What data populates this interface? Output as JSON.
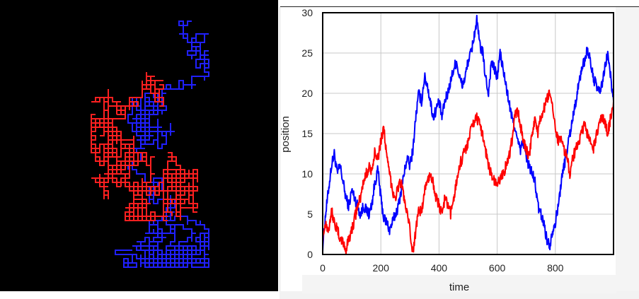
{
  "walk_panel": {
    "background": "#000000",
    "walkers": [
      {
        "color": "#2020ff"
      },
      {
        "color": "#ff2020"
      }
    ]
  },
  "chart_data": {
    "type": "line",
    "title": "",
    "xlabel": "time",
    "ylabel": "position",
    "xlim": [
      0,
      1000
    ],
    "ylim": [
      0,
      30
    ],
    "xticks": [
      0,
      200,
      400,
      600,
      800
    ],
    "yticks": [
      0,
      5,
      10,
      15,
      20,
      25,
      30
    ],
    "grid": true,
    "series": [
      {
        "color": "#0000ff",
        "points": [
          [
            0,
            1
          ],
          [
            10,
            5
          ],
          [
            20,
            8
          ],
          [
            30,
            11
          ],
          [
            40,
            12.5
          ],
          [
            50,
            10
          ],
          [
            60,
            11
          ],
          [
            70,
            9
          ],
          [
            80,
            7
          ],
          [
            90,
            6
          ],
          [
            100,
            8
          ],
          [
            110,
            7
          ],
          [
            120,
            6
          ],
          [
            130,
            5
          ],
          [
            140,
            6
          ],
          [
            150,
            5.5
          ],
          [
            160,
            5
          ],
          [
            170,
            6.5
          ],
          [
            180,
            9
          ],
          [
            190,
            10.5
          ],
          [
            200,
            7
          ],
          [
            210,
            4.5
          ],
          [
            220,
            4
          ],
          [
            230,
            3
          ],
          [
            240,
            4
          ],
          [
            250,
            5
          ],
          [
            260,
            6
          ],
          [
            270,
            8
          ],
          [
            280,
            10
          ],
          [
            290,
            12
          ],
          [
            300,
            11
          ],
          [
            310,
            13
          ],
          [
            320,
            17
          ],
          [
            330,
            20
          ],
          [
            340,
            19
          ],
          [
            350,
            22
          ],
          [
            360,
            21
          ],
          [
            370,
            19
          ],
          [
            380,
            17
          ],
          [
            390,
            18
          ],
          [
            400,
            19
          ],
          [
            410,
            17
          ],
          [
            420,
            19
          ],
          [
            430,
            20
          ],
          [
            440,
            21.5
          ],
          [
            450,
            23
          ],
          [
            460,
            24
          ],
          [
            470,
            22
          ],
          [
            480,
            21
          ],
          [
            490,
            22
          ],
          [
            500,
            24
          ],
          [
            510,
            25
          ],
          [
            520,
            27
          ],
          [
            530,
            29
          ],
          [
            540,
            26
          ],
          [
            550,
            25
          ],
          [
            560,
            22
          ],
          [
            570,
            20
          ],
          [
            580,
            24
          ],
          [
            590,
            23
          ],
          [
            600,
            22
          ],
          [
            610,
            25
          ],
          [
            620,
            23
          ],
          [
            630,
            21
          ],
          [
            640,
            19
          ],
          [
            650,
            17
          ],
          [
            660,
            16
          ],
          [
            670,
            14
          ],
          [
            680,
            13
          ],
          [
            690,
            14
          ],
          [
            700,
            12
          ],
          [
            710,
            11
          ],
          [
            720,
            10
          ],
          [
            730,
            9
          ],
          [
            740,
            6
          ],
          [
            750,
            5
          ],
          [
            760,
            4
          ],
          [
            770,
            2
          ],
          [
            780,
            1
          ],
          [
            790,
            3
          ],
          [
            800,
            4
          ],
          [
            810,
            6
          ],
          [
            820,
            9
          ],
          [
            830,
            11
          ],
          [
            840,
            13
          ],
          [
            850,
            15
          ],
          [
            860,
            17
          ],
          [
            870,
            19
          ],
          [
            880,
            21
          ],
          [
            890,
            23
          ],
          [
            900,
            24
          ],
          [
            910,
            25.5
          ],
          [
            920,
            24
          ],
          [
            930,
            22
          ],
          [
            940,
            21
          ],
          [
            950,
            20
          ],
          [
            960,
            21
          ],
          [
            970,
            23
          ],
          [
            980,
            25
          ],
          [
            990,
            22
          ],
          [
            1000,
            19
          ]
        ]
      },
      {
        "color": "#ff0000",
        "points": [
          [
            0,
            2
          ],
          [
            10,
            4
          ],
          [
            20,
            3
          ],
          [
            30,
            5.5
          ],
          [
            40,
            4
          ],
          [
            50,
            3
          ],
          [
            60,
            2
          ],
          [
            70,
            1.5
          ],
          [
            80,
            0.5
          ],
          [
            90,
            2
          ],
          [
            100,
            3
          ],
          [
            110,
            4.5
          ],
          [
            120,
            6
          ],
          [
            130,
            7
          ],
          [
            140,
            9
          ],
          [
            150,
            10
          ],
          [
            160,
            11
          ],
          [
            170,
            10
          ],
          [
            180,
            13
          ],
          [
            190,
            12
          ],
          [
            200,
            14
          ],
          [
            210,
            16
          ],
          [
            220,
            12
          ],
          [
            230,
            10
          ],
          [
            240,
            8
          ],
          [
            250,
            7
          ],
          [
            260,
            8.5
          ],
          [
            270,
            9
          ],
          [
            280,
            7
          ],
          [
            290,
            5
          ],
          [
            300,
            3
          ],
          [
            310,
            0
          ],
          [
            320,
            3
          ],
          [
            330,
            6
          ],
          [
            340,
            5
          ],
          [
            350,
            8
          ],
          [
            360,
            9
          ],
          [
            370,
            10
          ],
          [
            380,
            9
          ],
          [
            390,
            7
          ],
          [
            400,
            6
          ],
          [
            410,
            5
          ],
          [
            420,
            7
          ],
          [
            430,
            6
          ],
          [
            440,
            5
          ],
          [
            450,
            7
          ],
          [
            460,
            9
          ],
          [
            470,
            11
          ],
          [
            480,
            12
          ],
          [
            490,
            13
          ],
          [
            500,
            14
          ],
          [
            510,
            15.5
          ],
          [
            520,
            16.5
          ],
          [
            530,
            17
          ],
          [
            540,
            16
          ],
          [
            550,
            15
          ],
          [
            560,
            13
          ],
          [
            570,
            11
          ],
          [
            580,
            10
          ],
          [
            590,
            9
          ],
          [
            600,
            8.5
          ],
          [
            610,
            9.5
          ],
          [
            620,
            10
          ],
          [
            630,
            11
          ],
          [
            640,
            12
          ],
          [
            650,
            14
          ],
          [
            660,
            17
          ],
          [
            670,
            18
          ],
          [
            680,
            16
          ],
          [
            690,
            14
          ],
          [
            700,
            13
          ],
          [
            710,
            12
          ],
          [
            720,
            15
          ],
          [
            730,
            17
          ],
          [
            740,
            15
          ],
          [
            750,
            17
          ],
          [
            760,
            18
          ],
          [
            770,
            19
          ],
          [
            780,
            20
          ],
          [
            790,
            18
          ],
          [
            800,
            16
          ],
          [
            810,
            14
          ],
          [
            820,
            15
          ],
          [
            830,
            13
          ],
          [
            840,
            12
          ],
          [
            850,
            10
          ],
          [
            860,
            12
          ],
          [
            870,
            13
          ],
          [
            880,
            14
          ],
          [
            890,
            15
          ],
          [
            900,
            16
          ],
          [
            910,
            15
          ],
          [
            920,
            14
          ],
          [
            930,
            13
          ],
          [
            940,
            14.5
          ],
          [
            950,
            16
          ],
          [
            960,
            17
          ],
          [
            970,
            16.5
          ],
          [
            980,
            15
          ],
          [
            990,
            17
          ],
          [
            1000,
            19
          ]
        ]
      }
    ]
  }
}
